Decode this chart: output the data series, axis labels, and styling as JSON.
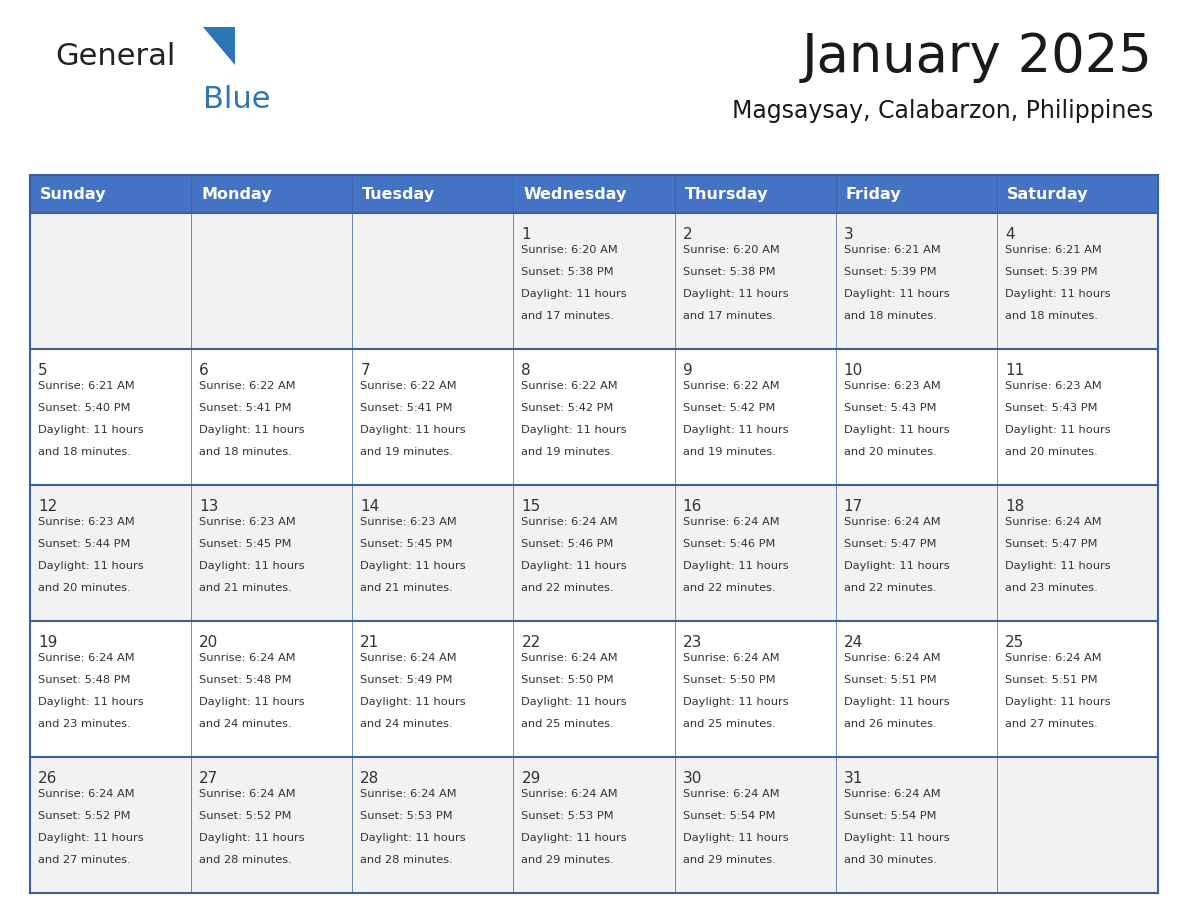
{
  "title": "January 2025",
  "subtitle": "Magsaysay, Calabarzon, Philippines",
  "days_of_week": [
    "Sunday",
    "Monday",
    "Tuesday",
    "Wednesday",
    "Thursday",
    "Friday",
    "Saturday"
  ],
  "header_bg": "#4472C4",
  "header_text_color": "#FFFFFF",
  "cell_bg_even": "#F2F2F2",
  "cell_bg_odd": "#FFFFFF",
  "border_color": "#3A5FA0",
  "text_color": "#333333",
  "logo_general_color": "#222222",
  "logo_blue_color": "#2E75B6",
  "calendar_data": [
    {
      "day": 1,
      "col": 3,
      "row": 0,
      "sunrise": "6:20 AM",
      "sunset": "5:38 PM",
      "daylight_hours": 11,
      "daylight_minutes": 17
    },
    {
      "day": 2,
      "col": 4,
      "row": 0,
      "sunrise": "6:20 AM",
      "sunset": "5:38 PM",
      "daylight_hours": 11,
      "daylight_minutes": 17
    },
    {
      "day": 3,
      "col": 5,
      "row": 0,
      "sunrise": "6:21 AM",
      "sunset": "5:39 PM",
      "daylight_hours": 11,
      "daylight_minutes": 18
    },
    {
      "day": 4,
      "col": 6,
      "row": 0,
      "sunrise": "6:21 AM",
      "sunset": "5:39 PM",
      "daylight_hours": 11,
      "daylight_minutes": 18
    },
    {
      "day": 5,
      "col": 0,
      "row": 1,
      "sunrise": "6:21 AM",
      "sunset": "5:40 PM",
      "daylight_hours": 11,
      "daylight_minutes": 18
    },
    {
      "day": 6,
      "col": 1,
      "row": 1,
      "sunrise": "6:22 AM",
      "sunset": "5:41 PM",
      "daylight_hours": 11,
      "daylight_minutes": 18
    },
    {
      "day": 7,
      "col": 2,
      "row": 1,
      "sunrise": "6:22 AM",
      "sunset": "5:41 PM",
      "daylight_hours": 11,
      "daylight_minutes": 19
    },
    {
      "day": 8,
      "col": 3,
      "row": 1,
      "sunrise": "6:22 AM",
      "sunset": "5:42 PM",
      "daylight_hours": 11,
      "daylight_minutes": 19
    },
    {
      "day": 9,
      "col": 4,
      "row": 1,
      "sunrise": "6:22 AM",
      "sunset": "5:42 PM",
      "daylight_hours": 11,
      "daylight_minutes": 19
    },
    {
      "day": 10,
      "col": 5,
      "row": 1,
      "sunrise": "6:23 AM",
      "sunset": "5:43 PM",
      "daylight_hours": 11,
      "daylight_minutes": 20
    },
    {
      "day": 11,
      "col": 6,
      "row": 1,
      "sunrise": "6:23 AM",
      "sunset": "5:43 PM",
      "daylight_hours": 11,
      "daylight_minutes": 20
    },
    {
      "day": 12,
      "col": 0,
      "row": 2,
      "sunrise": "6:23 AM",
      "sunset": "5:44 PM",
      "daylight_hours": 11,
      "daylight_minutes": 20
    },
    {
      "day": 13,
      "col": 1,
      "row": 2,
      "sunrise": "6:23 AM",
      "sunset": "5:45 PM",
      "daylight_hours": 11,
      "daylight_minutes": 21
    },
    {
      "day": 14,
      "col": 2,
      "row": 2,
      "sunrise": "6:23 AM",
      "sunset": "5:45 PM",
      "daylight_hours": 11,
      "daylight_minutes": 21
    },
    {
      "day": 15,
      "col": 3,
      "row": 2,
      "sunrise": "6:24 AM",
      "sunset": "5:46 PM",
      "daylight_hours": 11,
      "daylight_minutes": 22
    },
    {
      "day": 16,
      "col": 4,
      "row": 2,
      "sunrise": "6:24 AM",
      "sunset": "5:46 PM",
      "daylight_hours": 11,
      "daylight_minutes": 22
    },
    {
      "day": 17,
      "col": 5,
      "row": 2,
      "sunrise": "6:24 AM",
      "sunset": "5:47 PM",
      "daylight_hours": 11,
      "daylight_minutes": 22
    },
    {
      "day": 18,
      "col": 6,
      "row": 2,
      "sunrise": "6:24 AM",
      "sunset": "5:47 PM",
      "daylight_hours": 11,
      "daylight_minutes": 23
    },
    {
      "day": 19,
      "col": 0,
      "row": 3,
      "sunrise": "6:24 AM",
      "sunset": "5:48 PM",
      "daylight_hours": 11,
      "daylight_minutes": 23
    },
    {
      "day": 20,
      "col": 1,
      "row": 3,
      "sunrise": "6:24 AM",
      "sunset": "5:48 PM",
      "daylight_hours": 11,
      "daylight_minutes": 24
    },
    {
      "day": 21,
      "col": 2,
      "row": 3,
      "sunrise": "6:24 AM",
      "sunset": "5:49 PM",
      "daylight_hours": 11,
      "daylight_minutes": 24
    },
    {
      "day": 22,
      "col": 3,
      "row": 3,
      "sunrise": "6:24 AM",
      "sunset": "5:50 PM",
      "daylight_hours": 11,
      "daylight_minutes": 25
    },
    {
      "day": 23,
      "col": 4,
      "row": 3,
      "sunrise": "6:24 AM",
      "sunset": "5:50 PM",
      "daylight_hours": 11,
      "daylight_minutes": 25
    },
    {
      "day": 24,
      "col": 5,
      "row": 3,
      "sunrise": "6:24 AM",
      "sunset": "5:51 PM",
      "daylight_hours": 11,
      "daylight_minutes": 26
    },
    {
      "day": 25,
      "col": 6,
      "row": 3,
      "sunrise": "6:24 AM",
      "sunset": "5:51 PM",
      "daylight_hours": 11,
      "daylight_minutes": 27
    },
    {
      "day": 26,
      "col": 0,
      "row": 4,
      "sunrise": "6:24 AM",
      "sunset": "5:52 PM",
      "daylight_hours": 11,
      "daylight_minutes": 27
    },
    {
      "day": 27,
      "col": 1,
      "row": 4,
      "sunrise": "6:24 AM",
      "sunset": "5:52 PM",
      "daylight_hours": 11,
      "daylight_minutes": 28
    },
    {
      "day": 28,
      "col": 2,
      "row": 4,
      "sunrise": "6:24 AM",
      "sunset": "5:53 PM",
      "daylight_hours": 11,
      "daylight_minutes": 28
    },
    {
      "day": 29,
      "col": 3,
      "row": 4,
      "sunrise": "6:24 AM",
      "sunset": "5:53 PM",
      "daylight_hours": 11,
      "daylight_minutes": 29
    },
    {
      "day": 30,
      "col": 4,
      "row": 4,
      "sunrise": "6:24 AM",
      "sunset": "5:54 PM",
      "daylight_hours": 11,
      "daylight_minutes": 29
    },
    {
      "day": 31,
      "col": 5,
      "row": 4,
      "sunrise": "6:24 AM",
      "sunset": "5:54 PM",
      "daylight_hours": 11,
      "daylight_minutes": 30
    }
  ]
}
